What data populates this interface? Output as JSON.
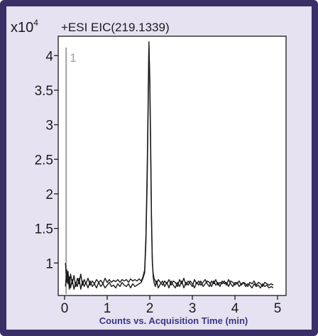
{
  "colors": {
    "frame": "#3a2f66",
    "background": "#e6e2f2",
    "axis": "#1a1a1a",
    "trace": "#1a1a1a",
    "marker": "#a0a0a0",
    "xlabel": "#3a3585"
  },
  "chart_data": {
    "type": "line",
    "title": "+ESI EIC(219.1339)",
    "xlabel": "Counts vs. Acquisition Time (min)",
    "ylabel": "",
    "y_multiplier": "x10",
    "y_exponent": "4",
    "marker_label": "1",
    "marker_x": 0.02,
    "xlim": [
      -0.15,
      5.2
    ],
    "ylim": [
      0.53,
      4.28
    ],
    "xticks": [
      0,
      1,
      2,
      3,
      4,
      5
    ],
    "yticks": [
      1,
      1.5,
      2,
      2.5,
      3,
      3.5,
      4
    ],
    "ytick_labels": [
      "1",
      "1.5",
      "2",
      "2.5",
      "3",
      "3.5",
      "4"
    ],
    "legend": "none",
    "grid": false,
    "series": [
      {
        "x": [
          0.02,
          0.05,
          0.08,
          0.11,
          0.14,
          0.18,
          0.22,
          0.26,
          0.3,
          0.34,
          0.38,
          0.42,
          0.46,
          0.5,
          0.55,
          0.6,
          0.65,
          0.7,
          0.75,
          0.8,
          0.85,
          0.9,
          0.95,
          1.0,
          1.05,
          1.1,
          1.15,
          1.2,
          1.25,
          1.3,
          1.35,
          1.4,
          1.45,
          1.5,
          1.55,
          1.6,
          1.65,
          1.7,
          1.75,
          1.8,
          1.84,
          1.88,
          1.91,
          1.94,
          1.96,
          1.98,
          2.0,
          2.02,
          2.04,
          2.06,
          2.08,
          2.1,
          2.13,
          2.16,
          2.2,
          2.25,
          2.3,
          2.35,
          2.4,
          2.45,
          2.5,
          2.55,
          2.6,
          2.65,
          2.7,
          2.75,
          2.8,
          2.85,
          2.9,
          2.95,
          3.0,
          3.05,
          3.1,
          3.15,
          3.2,
          3.25,
          3.3,
          3.35,
          3.4,
          3.45,
          3.5,
          3.55,
          3.6,
          3.65,
          3.7,
          3.75,
          3.8,
          3.85,
          3.9,
          3.95,
          4.0,
          4.05,
          4.1,
          4.15,
          4.2,
          4.25,
          4.3,
          4.35,
          4.4,
          4.45,
          4.5,
          4.55,
          4.6,
          4.65,
          4.7,
          4.75,
          4.8,
          4.85,
          4.9
        ],
        "y": [
          1.0,
          0.72,
          0.88,
          0.62,
          0.84,
          0.7,
          0.82,
          0.66,
          0.78,
          0.7,
          0.84,
          0.68,
          0.76,
          0.7,
          0.78,
          0.68,
          0.74,
          0.7,
          0.76,
          0.72,
          0.75,
          0.7,
          0.78,
          0.72,
          0.76,
          0.72,
          0.75,
          0.73,
          0.76,
          0.72,
          0.76,
          0.74,
          0.76,
          0.72,
          0.77,
          0.74,
          0.76,
          0.74,
          0.77,
          0.74,
          0.8,
          0.9,
          1.4,
          2.4,
          3.3,
          4.2,
          3.6,
          2.6,
          1.6,
          1.0,
          0.85,
          0.78,
          0.74,
          0.7,
          0.76,
          0.72,
          0.68,
          0.74,
          0.7,
          0.76,
          0.68,
          0.74,
          0.72,
          0.66,
          0.76,
          0.7,
          0.78,
          0.68,
          0.74,
          0.7,
          0.66,
          0.76,
          0.7,
          0.74,
          0.68,
          0.72,
          0.76,
          0.7,
          0.66,
          0.74,
          0.7,
          0.76,
          0.68,
          0.72,
          0.7,
          0.74,
          0.68,
          0.76,
          0.7,
          0.66,
          0.72,
          0.7,
          0.74,
          0.68,
          0.72,
          0.7,
          0.66,
          0.72,
          0.7,
          0.74,
          0.68,
          0.72,
          0.7,
          0.66,
          0.72,
          0.7,
          0.68,
          0.7,
          0.68
        ]
      },
      {
        "x": [
          0.02,
          0.05,
          0.08,
          0.11,
          0.14,
          0.18,
          0.22,
          0.26,
          0.3,
          0.34,
          0.38,
          0.42,
          0.46,
          0.5,
          0.55,
          0.6,
          0.65,
          0.7,
          0.75,
          0.8,
          0.85,
          0.9,
          0.95,
          1.0,
          1.05,
          1.1,
          1.15,
          1.2,
          1.25,
          1.3,
          1.35,
          1.4,
          1.45,
          1.5,
          1.55,
          1.6,
          1.65,
          1.7,
          1.75,
          1.8,
          1.84,
          1.88,
          1.91,
          1.94,
          1.96,
          1.98,
          2.0,
          2.02,
          2.04,
          2.06,
          2.08,
          2.1,
          2.13,
          2.16,
          2.2,
          2.25,
          2.3,
          2.35,
          2.4,
          2.45,
          2.5,
          2.55,
          2.6,
          2.65,
          2.7,
          2.75,
          2.8,
          2.85,
          2.9,
          2.95,
          3.0,
          3.05,
          3.1,
          3.15,
          3.2,
          3.25,
          3.3,
          3.35,
          3.4,
          3.45,
          3.5,
          3.55,
          3.6,
          3.65,
          3.7,
          3.75,
          3.8,
          3.85,
          3.9,
          3.95,
          4.0,
          4.05,
          4.1,
          4.15,
          4.2,
          4.25,
          4.3,
          4.35,
          4.4,
          4.45,
          4.5,
          4.55,
          4.6,
          4.65,
          4.7,
          4.75,
          4.8,
          4.85,
          4.9
        ],
        "y": [
          0.66,
          0.9,
          0.7,
          0.8,
          0.64,
          0.76,
          0.62,
          0.72,
          0.66,
          0.78,
          0.62,
          0.74,
          0.66,
          0.72,
          0.64,
          0.74,
          0.66,
          0.7,
          0.64,
          0.72,
          0.66,
          0.7,
          0.64,
          0.68,
          0.72,
          0.66,
          0.68,
          0.64,
          0.7,
          0.66,
          0.72,
          0.68,
          0.66,
          0.7,
          0.64,
          0.7,
          0.66,
          0.68,
          0.7,
          0.72,
          0.78,
          0.86,
          1.3,
          2.2,
          3.1,
          4.15,
          3.7,
          2.8,
          1.7,
          1.05,
          0.8,
          0.72,
          0.66,
          0.74,
          0.64,
          0.7,
          0.74,
          0.66,
          0.72,
          0.64,
          0.74,
          0.68,
          0.64,
          0.72,
          0.66,
          0.74,
          0.64,
          0.72,
          0.68,
          0.74,
          0.7,
          0.64,
          0.72,
          0.68,
          0.74,
          0.66,
          0.7,
          0.74,
          0.72,
          0.66,
          0.74,
          0.68,
          0.72,
          0.66,
          0.74,
          0.7,
          0.72,
          0.66,
          0.74,
          0.72,
          0.68,
          0.72,
          0.66,
          0.7,
          0.72,
          0.66,
          0.7,
          0.68,
          0.64,
          0.7,
          0.66,
          0.68,
          0.64,
          0.7,
          0.66,
          0.68,
          0.64,
          0.66,
          0.64
        ]
      }
    ]
  }
}
